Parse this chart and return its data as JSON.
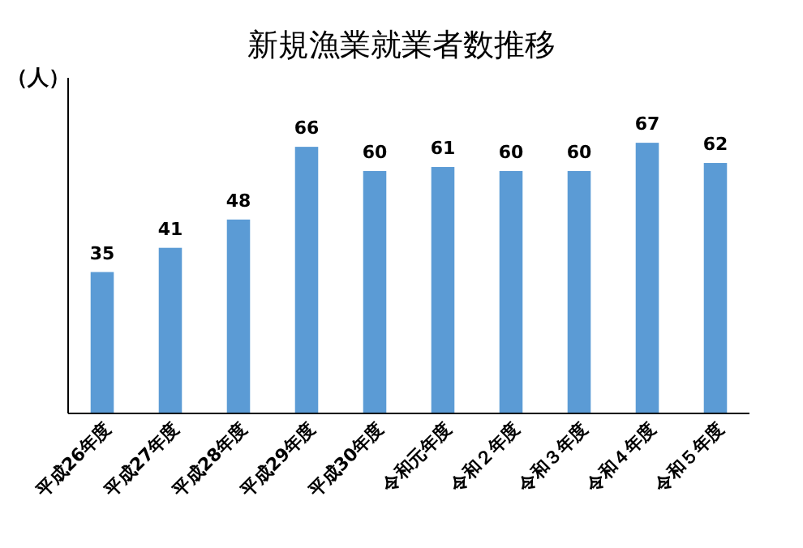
{
  "chart_data": {
    "type": "bar",
    "title": "新規漁業就業者数推移",
    "ylabel": "（人）",
    "categories": [
      "平成26年度",
      "平成27年度",
      "平成28年度",
      "平成29年度",
      "平成30年度",
      "令和元年度",
      "令和２年度",
      "令和３年度",
      "令和４年度",
      "令和５年度"
    ],
    "values": [
      35,
      41,
      48,
      66,
      60,
      61,
      60,
      60,
      67,
      62
    ],
    "color": "#5b9bd5",
    "data_labels": true
  }
}
